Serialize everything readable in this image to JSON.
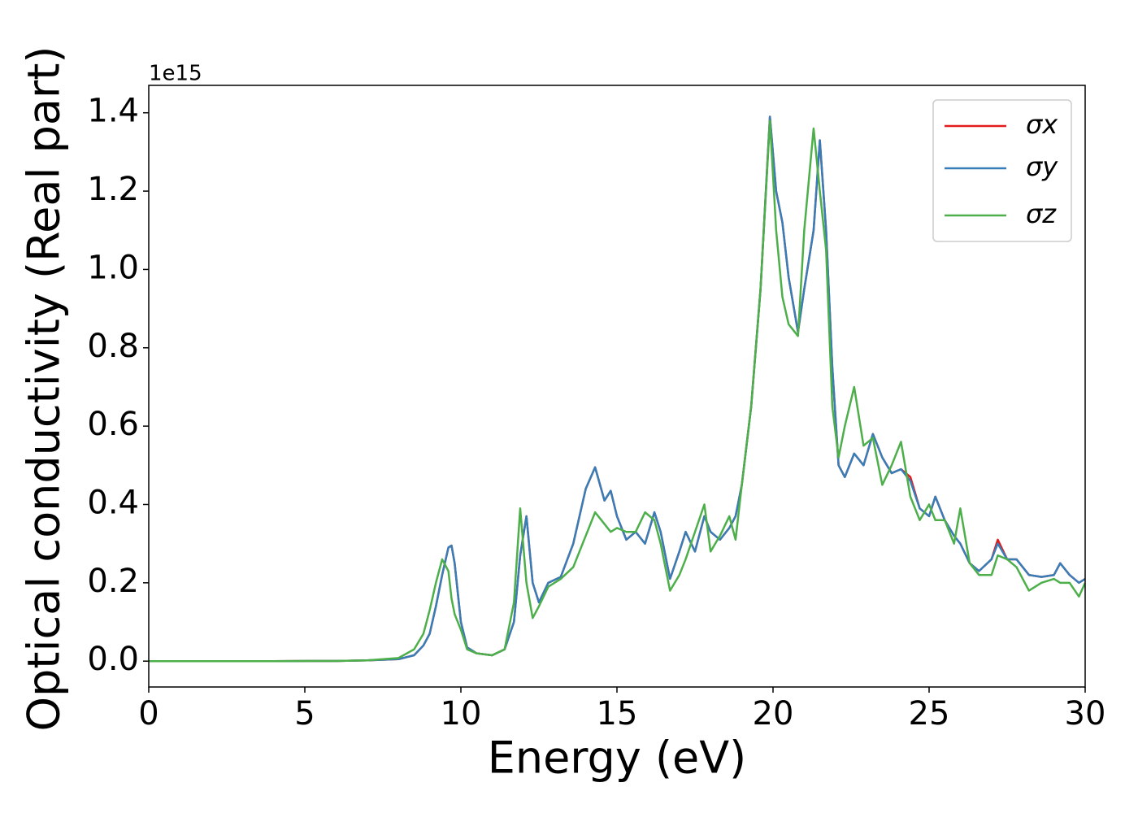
{
  "chart_data": {
    "type": "line",
    "xlabel": "Energy (eV)",
    "ylabel": "Optical conductivity (Real part)",
    "y_offset_label": "1e15",
    "x": [
      0,
      2,
      4,
      6,
      7,
      8,
      8.5,
      8.8,
      9.0,
      9.2,
      9.4,
      9.6,
      9.7,
      9.8,
      10.0,
      10.2,
      10.5,
      11.0,
      11.4,
      11.7,
      11.9,
      12.1,
      12.3,
      12.5,
      12.8,
      13.2,
      13.6,
      14.0,
      14.3,
      14.6,
      14.8,
      15.0,
      15.3,
      15.6,
      15.9,
      16.2,
      16.4,
      16.7,
      17.0,
      17.2,
      17.5,
      17.8,
      18.0,
      18.3,
      18.6,
      18.8,
      19.0,
      19.3,
      19.6,
      19.9,
      20.1,
      20.3,
      20.5,
      20.8,
      21.0,
      21.3,
      21.5,
      21.7,
      21.9,
      22.1,
      22.3,
      22.6,
      22.9,
      23.2,
      23.5,
      23.8,
      24.1,
      24.4,
      24.7,
      25.0,
      25.2,
      25.5,
      25.8,
      26.0,
      26.3,
      26.6,
      27.0,
      27.2,
      27.5,
      27.8,
      28.2,
      28.6,
      29.0,
      29.2,
      29.5,
      29.8,
      30.0
    ],
    "series": [
      {
        "name": "σx",
        "color": "#e41a1c",
        "values": [
          0,
          0,
          0,
          0.0005,
          0.002,
          0.005,
          0.015,
          0.04,
          0.07,
          0.14,
          0.22,
          0.29,
          0.295,
          0.25,
          0.1,
          0.035,
          0.02,
          0.015,
          0.03,
          0.1,
          0.27,
          0.37,
          0.2,
          0.15,
          0.2,
          0.215,
          0.3,
          0.44,
          0.495,
          0.41,
          0.435,
          0.37,
          0.31,
          0.33,
          0.3,
          0.38,
          0.33,
          0.21,
          0.28,
          0.33,
          0.28,
          0.37,
          0.33,
          0.31,
          0.34,
          0.37,
          0.45,
          0.65,
          0.95,
          1.39,
          1.2,
          1.12,
          0.98,
          0.84,
          0.95,
          1.1,
          1.33,
          1.1,
          0.75,
          0.5,
          0.47,
          0.53,
          0.5,
          0.58,
          0.52,
          0.48,
          0.49,
          0.47,
          0.39,
          0.37,
          0.42,
          0.36,
          0.32,
          0.3,
          0.25,
          0.23,
          0.26,
          0.31,
          0.26,
          0.26,
          0.22,
          0.215,
          0.22,
          0.25,
          0.22,
          0.2,
          0.21
        ]
      },
      {
        "name": "σy",
        "color": "#377eb8",
        "values": [
          0,
          0,
          0,
          0.0005,
          0.002,
          0.005,
          0.015,
          0.04,
          0.07,
          0.14,
          0.22,
          0.29,
          0.295,
          0.25,
          0.1,
          0.035,
          0.02,
          0.015,
          0.03,
          0.1,
          0.27,
          0.37,
          0.2,
          0.15,
          0.2,
          0.215,
          0.3,
          0.44,
          0.495,
          0.41,
          0.435,
          0.37,
          0.31,
          0.33,
          0.3,
          0.38,
          0.33,
          0.21,
          0.28,
          0.33,
          0.28,
          0.37,
          0.33,
          0.31,
          0.34,
          0.37,
          0.45,
          0.65,
          0.95,
          1.39,
          1.2,
          1.12,
          0.98,
          0.84,
          0.95,
          1.1,
          1.33,
          1.1,
          0.75,
          0.5,
          0.47,
          0.53,
          0.5,
          0.58,
          0.52,
          0.48,
          0.49,
          0.46,
          0.39,
          0.37,
          0.42,
          0.36,
          0.32,
          0.3,
          0.25,
          0.23,
          0.26,
          0.3,
          0.26,
          0.26,
          0.22,
          0.215,
          0.22,
          0.25,
          0.22,
          0.2,
          0.21
        ]
      },
      {
        "name": "σz",
        "color": "#4daf4a",
        "values": [
          0,
          0,
          0,
          0.0005,
          0.002,
          0.008,
          0.03,
          0.07,
          0.13,
          0.2,
          0.26,
          0.23,
          0.16,
          0.12,
          0.08,
          0.03,
          0.02,
          0.015,
          0.03,
          0.15,
          0.39,
          0.2,
          0.11,
          0.14,
          0.19,
          0.21,
          0.24,
          0.32,
          0.38,
          0.35,
          0.33,
          0.34,
          0.33,
          0.33,
          0.38,
          0.36,
          0.3,
          0.18,
          0.22,
          0.26,
          0.33,
          0.4,
          0.28,
          0.32,
          0.37,
          0.31,
          0.45,
          0.65,
          0.95,
          1.38,
          1.1,
          0.93,
          0.86,
          0.83,
          1.1,
          1.36,
          1.2,
          1.05,
          0.65,
          0.52,
          0.6,
          0.7,
          0.55,
          0.57,
          0.45,
          0.5,
          0.56,
          0.42,
          0.36,
          0.4,
          0.36,
          0.36,
          0.3,
          0.39,
          0.25,
          0.22,
          0.22,
          0.27,
          0.26,
          0.24,
          0.18,
          0.2,
          0.21,
          0.2,
          0.2,
          0.165,
          0.2
        ]
      }
    ],
    "xlim": [
      0,
      30
    ],
    "xticks": [
      0,
      5,
      10,
      15,
      20,
      25,
      30
    ],
    "ylim": [
      -0.066,
      1.47
    ],
    "yticks": [
      {
        "value": 0,
        "label": "0.0"
      },
      0.2,
      0.4,
      0.6,
      0.8,
      {
        "value": 1,
        "label": "1.0"
      },
      1.2,
      1.4
    ],
    "grid": false,
    "legend": "upper right"
  }
}
